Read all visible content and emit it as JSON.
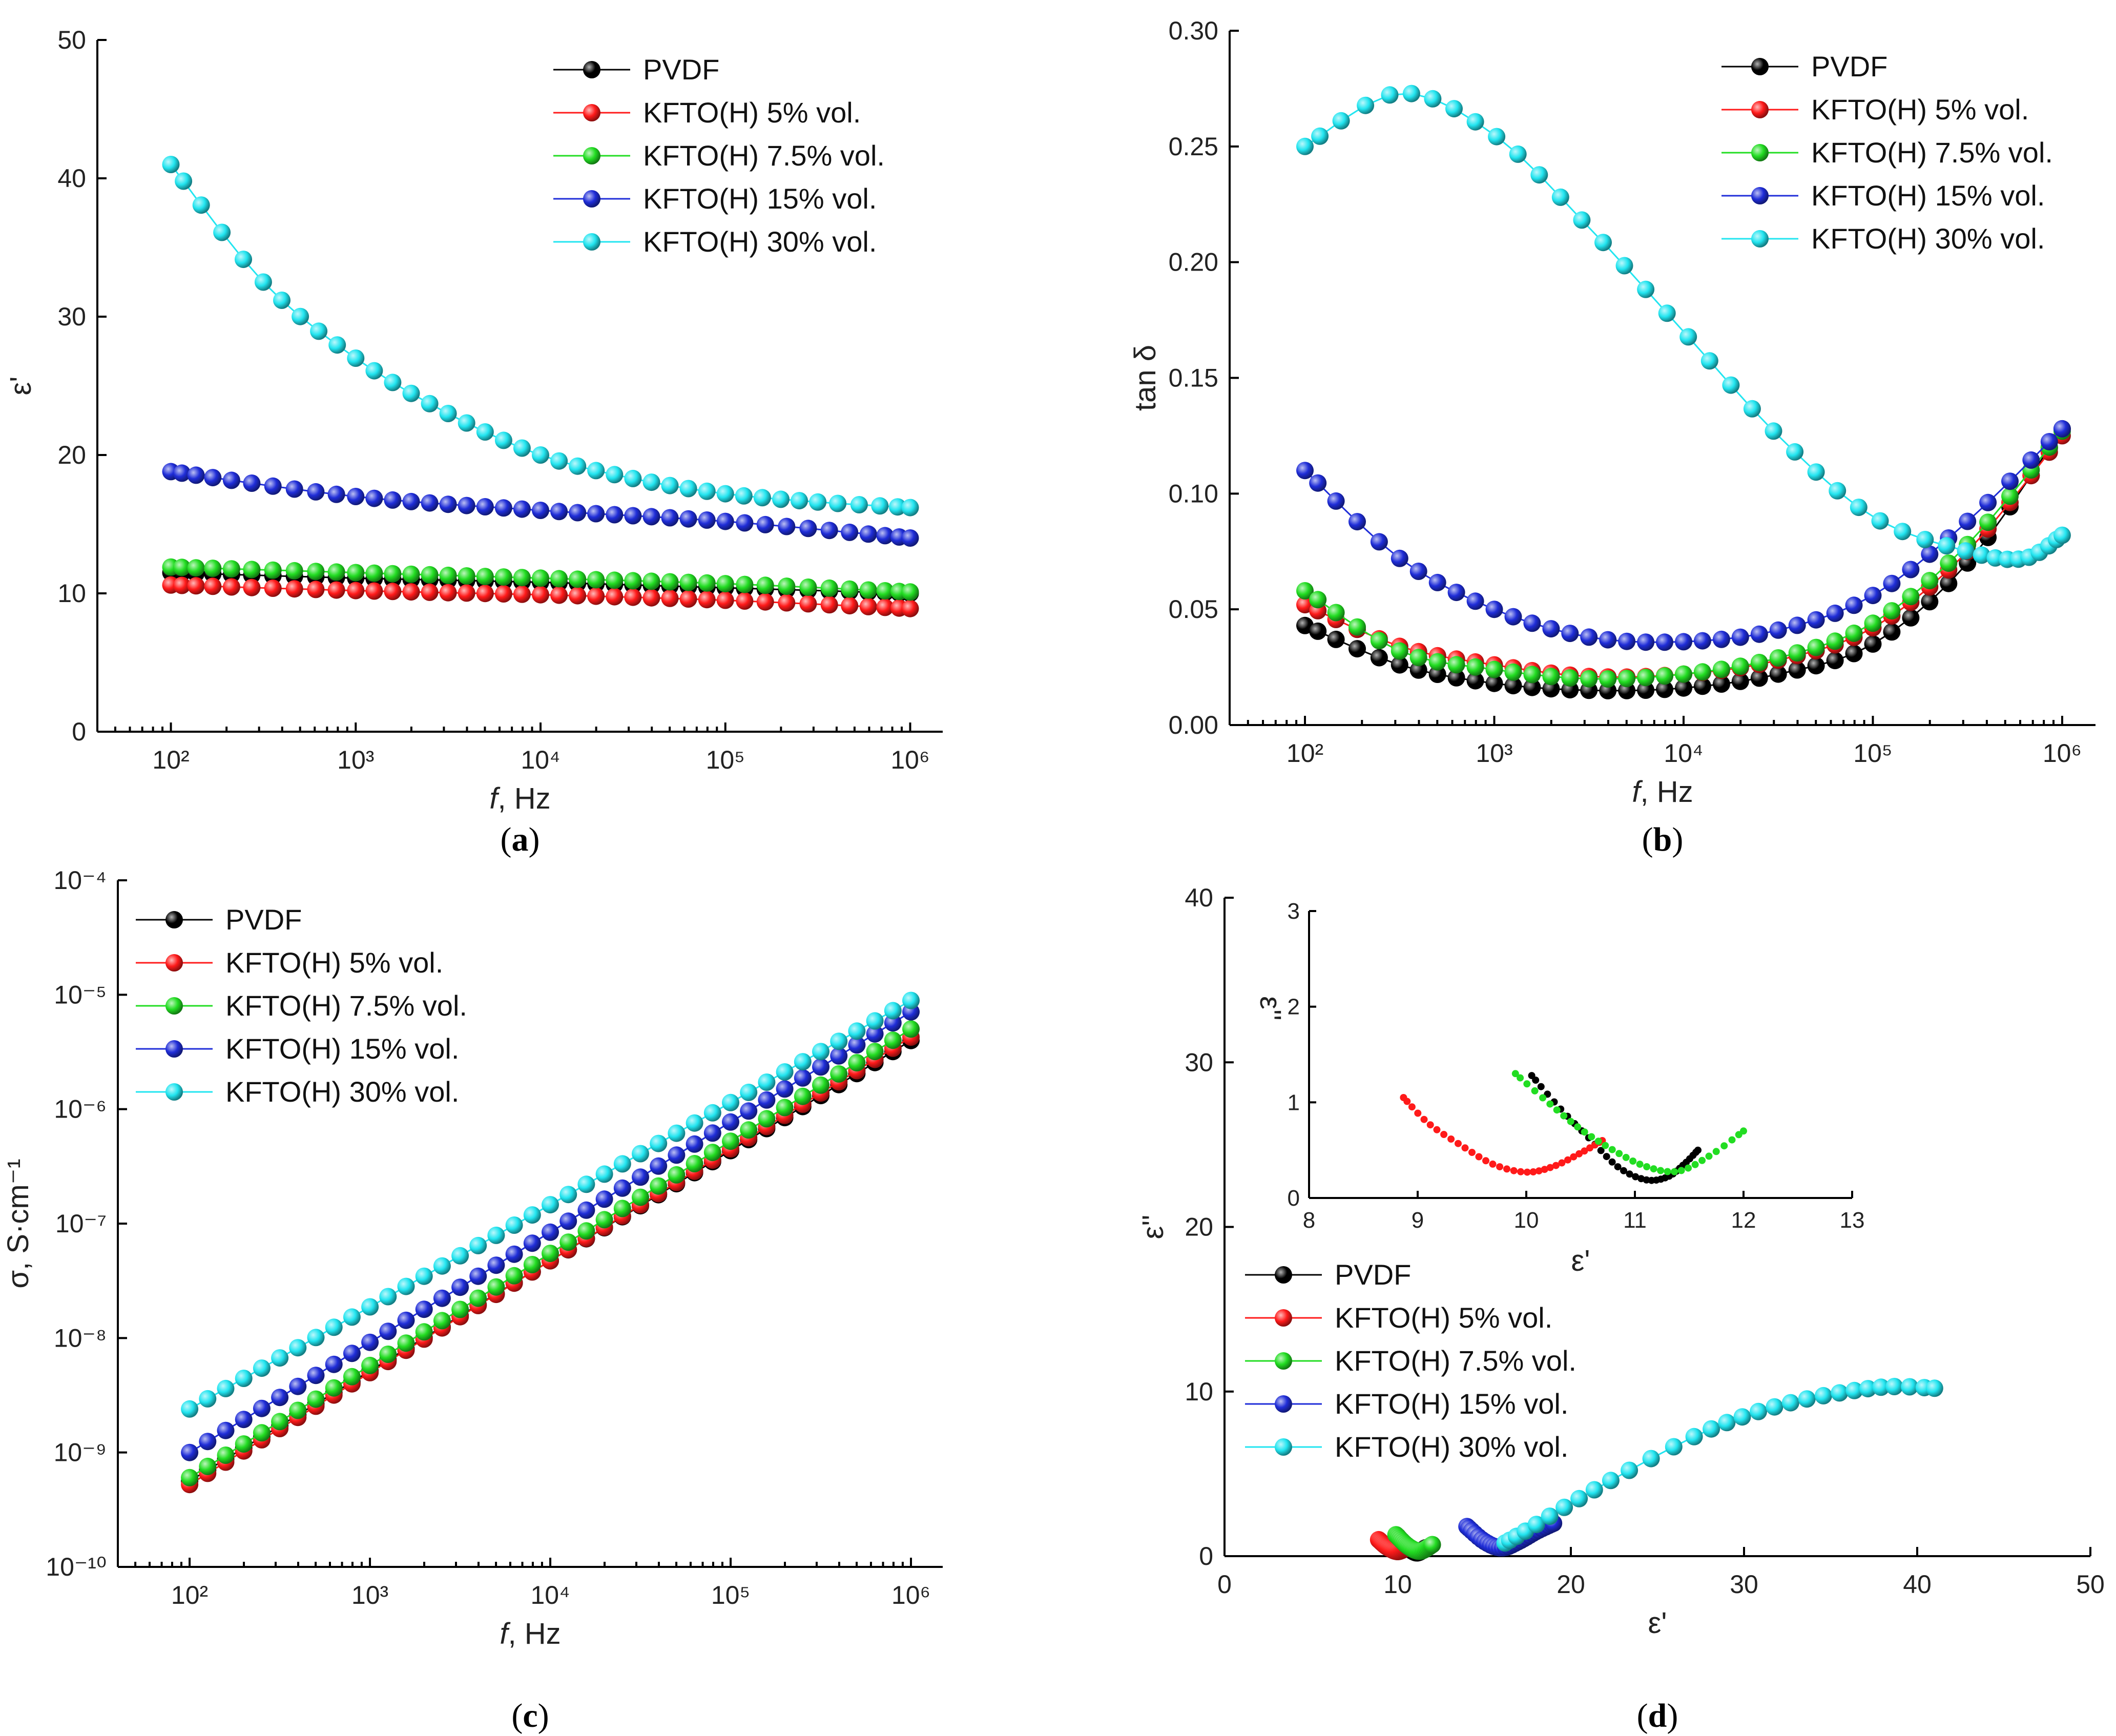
{
  "chart_data": [
    {
      "id": "a",
      "type": "scatter",
      "panel_label": "a",
      "xlabel_italic": "f",
      "xlabel_rest": ", Hz",
      "ylabel": "ε'",
      "xscale": "log",
      "xlim": [
        40,
        1500000
      ],
      "ylim": [
        0,
        50
      ],
      "xticks": [
        100,
        1000,
        10000,
        100000,
        1000000
      ],
      "xtick_labels": [
        "10²",
        "10³",
        "10⁴",
        "10⁵",
        "10⁶"
      ],
      "yticks": [
        0,
        10,
        20,
        30,
        40,
        50
      ],
      "ytick_labels": [
        "0",
        "10",
        "20",
        "30",
        "40",
        "50"
      ],
      "legend_position": "top-right",
      "series": [
        {
          "name": "PVDF",
          "color": "#000000",
          "x_log": [
            2,
            6
          ],
          "points": [
            [
              2,
              11.5
            ],
            [
              3,
              11.1
            ],
            [
              4,
              10.8
            ],
            [
              5,
              10.4
            ],
            [
              6,
              10.0
            ]
          ]
        },
        {
          "name": "KFTO(H) 5% vol.",
          "color": "#ff1a1a",
          "x_log": [
            2,
            6
          ],
          "points": [
            [
              2,
              10.6
            ],
            [
              3,
              10.2
            ],
            [
              4,
              9.9
            ],
            [
              5,
              9.5
            ],
            [
              6,
              8.9
            ]
          ]
        },
        {
          "name": "KFTO(H) 7.5% vol.",
          "color": "#22dd22",
          "x_log": [
            2,
            6
          ],
          "points": [
            [
              2,
              11.9
            ],
            [
              3,
              11.5
            ],
            [
              4,
              11.1
            ],
            [
              5,
              10.7
            ],
            [
              6,
              10.1
            ]
          ]
        },
        {
          "name": "KFTO(H) 15% vol.",
          "color": "#1f2dd8",
          "x_log": [
            2,
            6
          ],
          "points": [
            [
              2,
              18.8
            ],
            [
              3,
              17.0
            ],
            [
              4,
              16.0
            ],
            [
              5,
              15.2
            ],
            [
              6,
              14.0
            ]
          ]
        },
        {
          "name": "KFTO(H) 30% vol.",
          "color": "#22e5f0",
          "x_log": [
            2,
            6
          ],
          "points": [
            [
              2,
              41.0
            ],
            [
              2.5,
              32.5
            ],
            [
              3,
              27.0
            ],
            [
              3.5,
              23.0
            ],
            [
              4,
              20.0
            ],
            [
              4.5,
              18.3
            ],
            [
              5,
              17.2
            ],
            [
              5.5,
              16.6
            ],
            [
              6,
              16.2
            ]
          ]
        }
      ]
    },
    {
      "id": "b",
      "type": "scatter",
      "panel_label": "b",
      "xlabel_italic": "f",
      "xlabel_rest": ", Hz",
      "ylabel": "tan δ",
      "xscale": "log",
      "xlim": [
        40,
        1500000
      ],
      "ylim": [
        0,
        0.3
      ],
      "xticks": [
        100,
        1000,
        10000,
        100000,
        1000000
      ],
      "xtick_labels": [
        "10²",
        "10³",
        "10⁴",
        "10⁵",
        "10⁶"
      ],
      "yticks": [
        0,
        0.05,
        0.1,
        0.15,
        0.2,
        0.25,
        0.3
      ],
      "ytick_labels": [
        "0.00",
        "0.05",
        "0.10",
        "0.15",
        "0.20",
        "0.25",
        "0.30"
      ],
      "legend_position": "top-right",
      "series": [
        {
          "name": "PVDF",
          "color": "#000000",
          "points": [
            [
              2,
              0.043
            ],
            [
              2.5,
              0.026
            ],
            [
              3,
              0.018
            ],
            [
              3.5,
              0.015
            ],
            [
              4,
              0.016
            ],
            [
              4.5,
              0.022
            ],
            [
              5,
              0.035
            ],
            [
              5.5,
              0.07
            ],
            [
              6,
              0.128
            ]
          ]
        },
        {
          "name": "KFTO(H) 5% vol.",
          "color": "#ff1a1a",
          "points": [
            [
              2,
              0.052
            ],
            [
              2.5,
              0.034
            ],
            [
              3,
              0.026
            ],
            [
              3.5,
              0.021
            ],
            [
              4,
              0.022
            ],
            [
              4.5,
              0.028
            ],
            [
              5,
              0.042
            ],
            [
              5.5,
              0.075
            ],
            [
              6,
              0.125
            ]
          ]
        },
        {
          "name": "KFTO(H) 7.5% vol.",
          "color": "#22dd22",
          "points": [
            [
              2,
              0.058
            ],
            [
              2.5,
              0.032
            ],
            [
              3,
              0.024
            ],
            [
              3.5,
              0.02
            ],
            [
              4,
              0.022
            ],
            [
              4.5,
              0.029
            ],
            [
              5,
              0.044
            ],
            [
              5.5,
              0.078
            ],
            [
              6,
              0.127
            ]
          ]
        },
        {
          "name": "KFTO(H) 15% vol.",
          "color": "#1f2dd8",
          "points": [
            [
              2,
              0.11
            ],
            [
              2.5,
              0.072
            ],
            [
              3,
              0.05
            ],
            [
              3.5,
              0.038
            ],
            [
              4,
              0.036
            ],
            [
              4.5,
              0.041
            ],
            [
              5,
              0.056
            ],
            [
              5.5,
              0.088
            ],
            [
              6,
              0.128
            ]
          ]
        },
        {
          "name": "KFTO(H) 30% vol.",
          "color": "#22e5f0",
          "points": [
            [
              2,
              0.25
            ],
            [
              2.5,
              0.273
            ],
            [
              3,
              0.255
            ],
            [
              3.5,
              0.215
            ],
            [
              4,
              0.17
            ],
            [
              4.5,
              0.125
            ],
            [
              5,
              0.09
            ],
            [
              5.5,
              0.075
            ],
            [
              5.8,
              0.072
            ],
            [
              6,
              0.082
            ]
          ]
        }
      ]
    },
    {
      "id": "c",
      "type": "scatter",
      "panel_label": "c",
      "xlabel_italic": "f",
      "xlabel_rest": ", Hz",
      "ylabel": "σ, S·cm⁻¹",
      "xscale": "log",
      "yscale": "log",
      "xlim": [
        40,
        1500000
      ],
      "ylim": [
        1e-10,
        0.0001
      ],
      "xticks": [
        100,
        1000,
        10000,
        100000,
        1000000
      ],
      "xtick_labels": [
        "10²",
        "10³",
        "10⁴",
        "10⁵",
        "10⁶"
      ],
      "yticks": [
        -10,
        -9,
        -8,
        -7,
        -6,
        -5,
        -4
      ],
      "ytick_labels": [
        "10⁻¹⁰",
        "10⁻⁹",
        "10⁻⁸",
        "10⁻⁷",
        "10⁻⁶",
        "10⁻⁵",
        "10⁻⁴"
      ],
      "legend_position": "top-left",
      "series": [
        {
          "name": "PVDF",
          "color": "#000000",
          "points_log": [
            [
              2,
              -9.25
            ],
            [
              6,
              -5.4
            ]
          ]
        },
        {
          "name": "KFTO(H) 5% vol.",
          "color": "#ff1a1a",
          "points_log": [
            [
              2,
              -9.28
            ],
            [
              6,
              -5.37
            ]
          ]
        },
        {
          "name": "KFTO(H) 7.5% vol.",
          "color": "#22dd22",
          "points_log": [
            [
              2,
              -9.22
            ],
            [
              6,
              -5.3
            ]
          ]
        },
        {
          "name": "KFTO(H) 15% vol.",
          "color": "#1f2dd8",
          "points_log": [
            [
              2,
              -9.0
            ],
            [
              6,
              -5.15
            ]
          ]
        },
        {
          "name": "KFTO(H) 30% vol.",
          "color": "#22e5f0",
          "points_log": [
            [
              2,
              -8.62
            ],
            [
              6,
              -5.05
            ]
          ]
        }
      ]
    },
    {
      "id": "d",
      "type": "scatter",
      "panel_label": "d",
      "xlabel": "ε'",
      "ylabel": "ε''",
      "xlim": [
        0,
        50
      ],
      "ylim": [
        0,
        40
      ],
      "xticks": [
        0,
        10,
        20,
        30,
        40,
        50
      ],
      "xtick_labels": [
        "0",
        "10",
        "20",
        "30",
        "40",
        "50"
      ],
      "yticks": [
        0,
        10,
        20,
        30,
        40
      ],
      "ytick_labels": [
        "0",
        "10",
        "20",
        "30",
        "40"
      ],
      "legend_position": "bottom-left",
      "series": [
        {
          "name": "PVDF",
          "color": "#000000",
          "points": [
            [
              10.0,
              1.2
            ],
            [
              10.5,
              0.6
            ],
            [
              11.1,
              0.2
            ],
            [
              11.6,
              0.5
            ]
          ]
        },
        {
          "name": "KFTO(H) 5% vol.",
          "color": "#ff1a1a",
          "points": [
            [
              8.9,
              1.0
            ],
            [
              9.4,
              0.55
            ],
            [
              10.0,
              0.28
            ],
            [
              10.6,
              0.55
            ]
          ]
        },
        {
          "name": "KFTO(H) 7.5% vol.",
          "color": "#22dd22",
          "points": [
            [
              9.9,
              1.3
            ],
            [
              10.6,
              0.6
            ],
            [
              11.3,
              0.3
            ],
            [
              12.0,
              0.7
            ]
          ]
        },
        {
          "name": "KFTO(H) 15% vol.",
          "color": "#1f2dd8",
          "points": [
            [
              14.0,
              1.8
            ],
            [
              15.0,
              0.9
            ],
            [
              16.0,
              0.5
            ],
            [
              17.0,
              0.9
            ],
            [
              18.0,
              1.5
            ],
            [
              19.0,
              2.0
            ]
          ]
        },
        {
          "name": "KFTO(H) 30% vol.",
          "color": "#22e5f0",
          "points": [
            [
              16.2,
              0.8
            ],
            [
              17.5,
              1.6
            ],
            [
              20.0,
              3.2
            ],
            [
              23.0,
              5.0
            ],
            [
              27.0,
              7.2
            ],
            [
              30.0,
              8.5
            ],
            [
              33.0,
              9.4
            ],
            [
              36.0,
              10.0
            ],
            [
              38.5,
              10.3
            ],
            [
              41.0,
              10.2
            ]
          ]
        }
      ],
      "inset": {
        "xlabel": "ε'",
        "ylabel": "ε''",
        "xlim": [
          8,
          13
        ],
        "ylim": [
          0,
          3
        ],
        "xticks": [
          8,
          9,
          10,
          11,
          12,
          13
        ],
        "xtick_labels": [
          "8",
          "9",
          "10",
          "11",
          "12",
          "13"
        ],
        "yticks": [
          0,
          1,
          2,
          3
        ],
        "ytick_labels": [
          "0",
          "1",
          "2",
          "3"
        ],
        "series": [
          {
            "name": "PVDF",
            "color": "#000000",
            "points": [
              [
                10.05,
                1.28
              ],
              [
                10.3,
                0.95
              ],
              [
                10.6,
                0.6
              ],
              [
                10.85,
                0.32
              ],
              [
                11.1,
                0.19
              ],
              [
                11.3,
                0.22
              ],
              [
                11.45,
                0.35
              ],
              [
                11.58,
                0.5
              ]
            ]
          },
          {
            "name": "KFTO(H) 5% vol.",
            "color": "#ff1a1a",
            "points": [
              [
                8.87,
                1.05
              ],
              [
                9.1,
                0.78
              ],
              [
                9.4,
                0.55
              ],
              [
                9.7,
                0.35
              ],
              [
                10.0,
                0.27
              ],
              [
                10.25,
                0.33
              ],
              [
                10.5,
                0.47
              ],
              [
                10.7,
                0.6
              ]
            ]
          },
          {
            "name": "KFTO(H) 7.5% vol.",
            "color": "#22dd22",
            "points": [
              [
                9.9,
                1.3
              ],
              [
                10.2,
                1.0
              ],
              [
                10.5,
                0.72
              ],
              [
                10.8,
                0.5
              ],
              [
                11.1,
                0.33
              ],
              [
                11.4,
                0.28
              ],
              [
                11.7,
                0.45
              ],
              [
                12.0,
                0.7
              ]
            ]
          }
        ]
      }
    }
  ]
}
